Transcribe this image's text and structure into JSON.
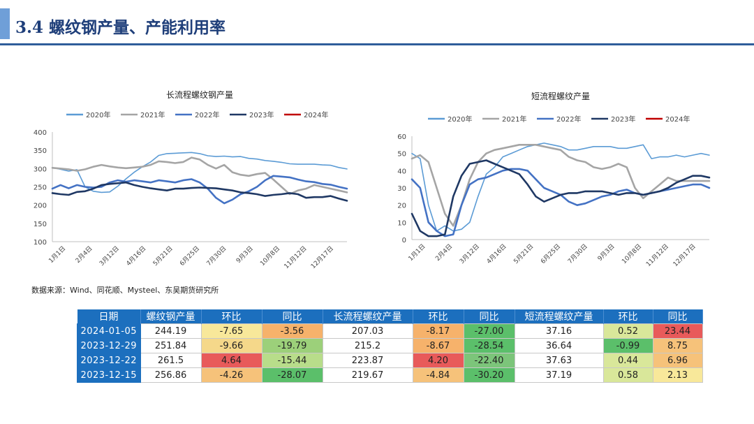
{
  "header": {
    "title": "3.4 螺纹钢产量、产能利用率"
  },
  "source": "数据来源：Wind、同花顺、Mysteel、东吴期货研究所",
  "colors": {
    "s2020": "#5b9bd5",
    "s2021": "#a5a5a5",
    "s2022": "#4472c4",
    "s2023": "#1f3864",
    "s2024": "#c00000"
  },
  "chart_data": [
    {
      "type": "line",
      "title": "长流程螺纹钢产量",
      "ylim": [
        100,
        400
      ],
      "yticks": [
        100,
        150,
        200,
        250,
        300,
        350,
        400
      ],
      "x_tick_labels": [
        "1月1日",
        "2月4日",
        "3月12日",
        "4月16日",
        "5月21日",
        "6月25日",
        "7月30日",
        "9月3日",
        "10月8日",
        "11月12日",
        "12月17日"
      ],
      "series": [
        {
          "name": "2020年",
          "values": [
            303,
            298,
            293,
            297,
            250,
            238,
            235,
            236,
            252,
            272,
            290,
            305,
            318,
            336,
            341,
            342,
            343,
            344,
            341,
            335,
            333,
            334,
            332,
            333,
            328,
            326,
            322,
            320,
            317,
            313,
            312,
            312,
            312,
            310,
            309,
            303,
            299
          ]
        },
        {
          "name": "2021年",
          "values": [
            302,
            300,
            298,
            294,
            298,
            305,
            310,
            306,
            303,
            301,
            303,
            305,
            310,
            320,
            318,
            315,
            318,
            330,
            325,
            310,
            300,
            310,
            290,
            283,
            280,
            285,
            288,
            270,
            250,
            230,
            240,
            245,
            255,
            250,
            245,
            240,
            235
          ]
        },
        {
          "name": "2022年",
          "values": [
            245,
            255,
            246,
            255,
            250,
            248,
            250,
            262,
            268,
            264,
            268,
            265,
            262,
            268,
            265,
            262,
            268,
            271,
            262,
            245,
            220,
            205,
            215,
            230,
            238,
            250,
            268,
            280,
            278,
            276,
            270,
            265,
            263,
            258,
            256,
            250,
            245
          ]
        },
        {
          "name": "2023年",
          "values": [
            233,
            230,
            228,
            236,
            238,
            245,
            255,
            258,
            260,
            262,
            255,
            250,
            246,
            243,
            240,
            245,
            245,
            247,
            248,
            247,
            246,
            243,
            240,
            235,
            233,
            230,
            225,
            228,
            230,
            233,
            230,
            220,
            222,
            222,
            225,
            218,
            212
          ]
        },
        {
          "name": "2024年",
          "values": []
        }
      ]
    },
    {
      "type": "line",
      "title": "短流程螺纹产量",
      "ylim": [
        0,
        60
      ],
      "yticks": [
        0,
        10,
        20,
        30,
        40,
        50,
        60
      ],
      "x_tick_labels": [
        "1月1日",
        "2月4日",
        "3月12日",
        "4月16日",
        "5月21日",
        "6月25日",
        "7月30日",
        "9月3日",
        "10月8日",
        "11月12日",
        "12月17日"
      ],
      "series": [
        {
          "name": "2020年",
          "values": [
            50,
            47,
            20,
            5,
            8,
            5,
            6,
            10,
            25,
            38,
            42,
            48,
            50,
            52,
            54,
            55,
            56,
            55,
            54,
            52,
            52,
            53,
            54,
            54,
            54,
            53,
            53,
            54,
            55,
            47,
            48,
            48,
            49,
            48,
            49,
            50,
            49
          ]
        },
        {
          "name": "2021年",
          "values": [
            47,
            49,
            45,
            30,
            15,
            8,
            20,
            35,
            45,
            50,
            52,
            53,
            54,
            55,
            55,
            55,
            54,
            53,
            52,
            48,
            46,
            45,
            42,
            41,
            42,
            44,
            42,
            30,
            24,
            28,
            32,
            36,
            34,
            34,
            34,
            34,
            34
          ]
        },
        {
          "name": "2022年",
          "values": [
            35,
            30,
            10,
            5,
            2,
            3,
            20,
            32,
            35,
            36,
            38,
            40,
            41,
            41,
            40,
            35,
            30,
            28,
            26,
            22,
            20,
            21,
            23,
            25,
            26,
            28,
            29,
            27,
            26,
            27,
            28,
            29,
            30,
            31,
            32,
            32,
            30
          ]
        },
        {
          "name": "2023年",
          "values": [
            15,
            5,
            2,
            2,
            3,
            25,
            37,
            44,
            45,
            46,
            44,
            42,
            40,
            38,
            32,
            25,
            22,
            24,
            26,
            27,
            27,
            28,
            28,
            28,
            27,
            26,
            27,
            27,
            26,
            27,
            28,
            30,
            33,
            35,
            37,
            37,
            36
          ]
        },
        {
          "name": "2024年",
          "values": []
        }
      ]
    }
  ],
  "table": {
    "headers": [
      "日期",
      "螺纹钢产量",
      "环比",
      "同比",
      "长流程螺纹产量",
      "环比",
      "同比",
      "短流程螺纹产量",
      "环比",
      "同比"
    ],
    "rows": [
      {
        "date": "2024-01-05",
        "cells": [
          "244.19",
          "-7.65",
          "-3.56",
          "207.03",
          "-8.17",
          "-27.00",
          "37.16",
          "0.52",
          "23.44"
        ]
      },
      {
        "date": "2023-12-29",
        "cells": [
          "251.84",
          "-9.66",
          "-19.79",
          "215.2",
          "-8.67",
          "-28.54",
          "36.64",
          "-0.99",
          "8.75"
        ]
      },
      {
        "date": "2023-12-22",
        "cells": [
          "261.5",
          "4.64",
          "-15.44",
          "223.87",
          "4.20",
          "-22.40",
          "37.63",
          "0.44",
          "6.96"
        ]
      },
      {
        "date": "2023-12-15",
        "cells": [
          "256.86",
          "-4.26",
          "-28.07",
          "219.67",
          "-4.84",
          "-30.20",
          "37.19",
          "0.58",
          "2.13"
        ]
      }
    ],
    "cell_colors": [
      [
        "#ffffff",
        "#f8e89a",
        "#f6b26b",
        "#ffffff",
        "#f6b26b",
        "#5bbf6a",
        "#ffffff",
        "#d9e79a",
        "#e85a5a"
      ],
      [
        "#ffffff",
        "#f5d88a",
        "#9cd07a",
        "#ffffff",
        "#f6b26b",
        "#5bbf6a",
        "#ffffff",
        "#5bbf6a",
        "#f6c27a"
      ],
      [
        "#ffffff",
        "#e85a5a",
        "#b8dd8a",
        "#ffffff",
        "#e85a5a",
        "#7cc57a",
        "#ffffff",
        "#d9e79a",
        "#f6c27a"
      ],
      [
        "#ffffff",
        "#f6c27a",
        "#5bbf6a",
        "#ffffff",
        "#f6c27a",
        "#5bbf6a",
        "#ffffff",
        "#d9e79a",
        "#f8e89a"
      ]
    ]
  }
}
